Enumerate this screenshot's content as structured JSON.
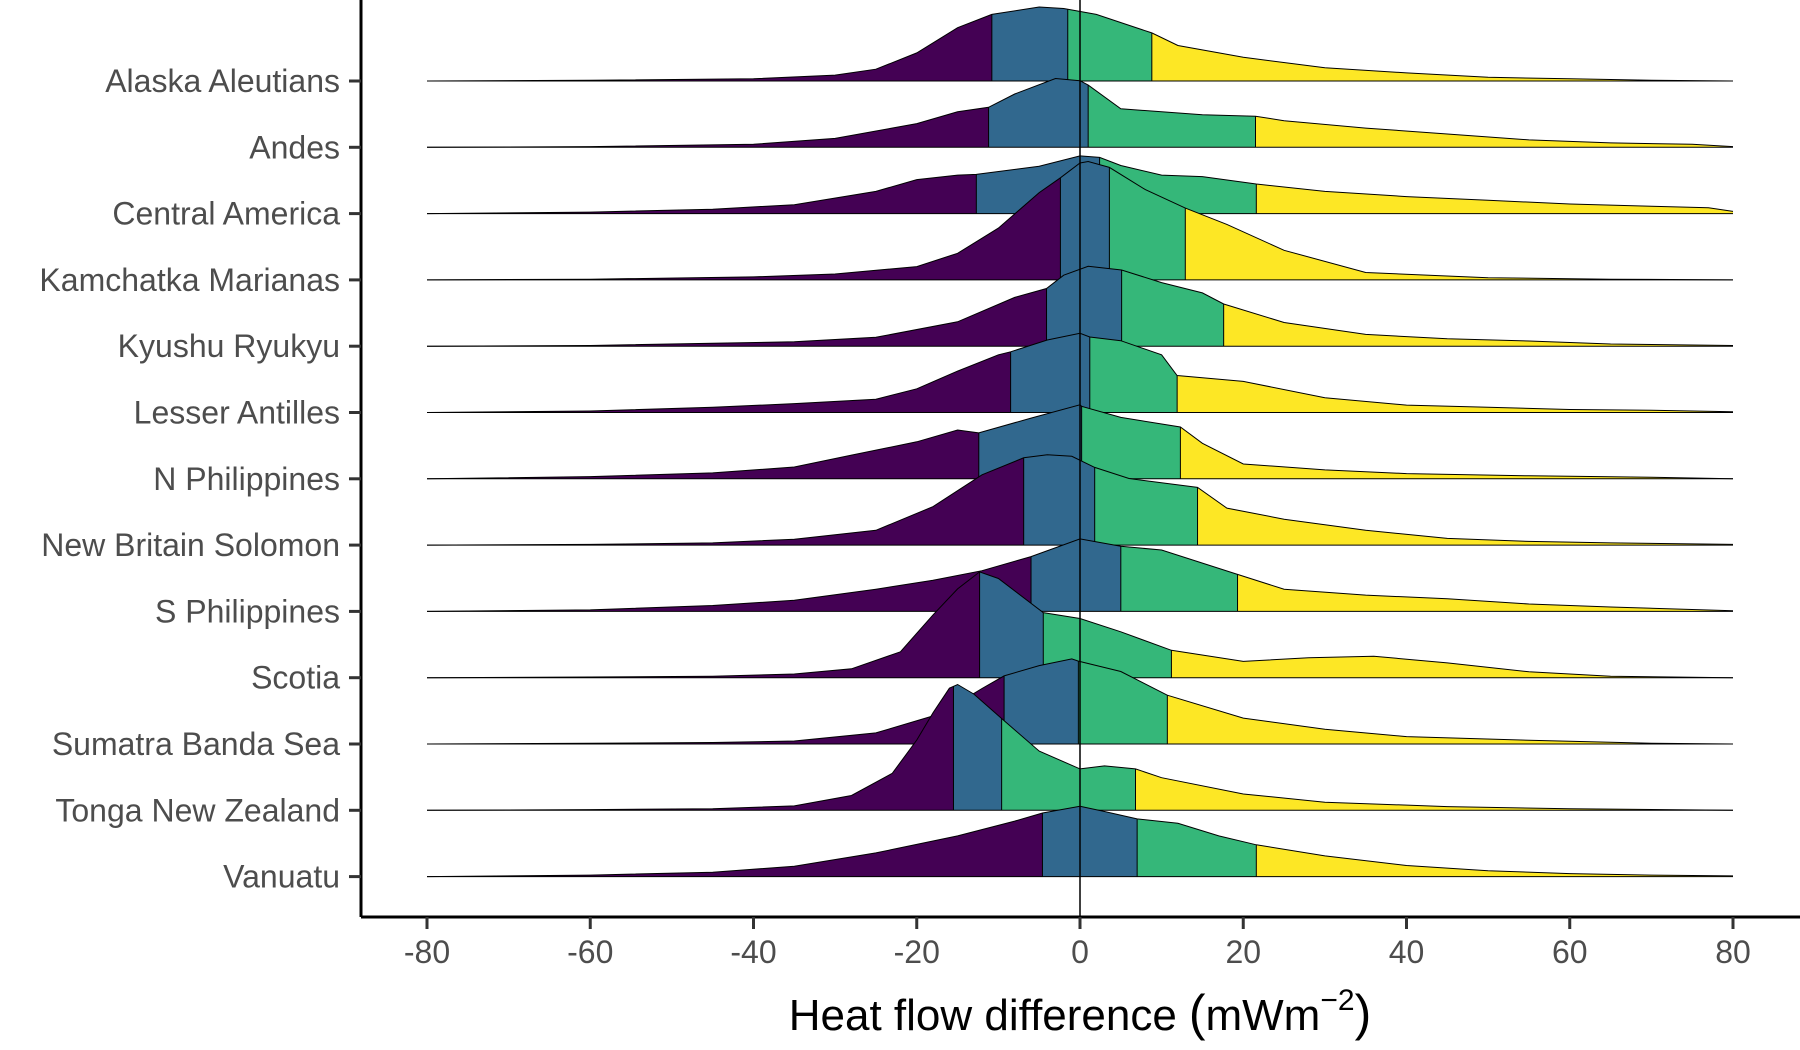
{
  "chart_data": {
    "type": "ridgeline",
    "xlabel": "Heat flow difference",
    "xlabel_unit_left": "(",
    "xlabel_unit_main": "mWm",
    "xlabel_unit_sup": "−2",
    "xlabel_unit_right": ")",
    "xlim": [
      -80,
      80
    ],
    "xticks": [
      -80,
      -60,
      -40,
      -20,
      0,
      20,
      40,
      60,
      80
    ],
    "xtick_labels": [
      "-80",
      "-60",
      "-40",
      "-20",
      "0",
      "20",
      "40",
      "60",
      "80"
    ],
    "vline": 0,
    "quantile_colors": [
      "#440154",
      "#31688E",
      "#35B779",
      "#FDE725"
    ],
    "categories": [
      "Alaska Aleutians",
      "Andes",
      "Central America",
      "Kamchatka Marianas",
      "Kyushu Ryukyu",
      "Lesser Antilles",
      "N Philippines",
      "New Britain Solomon",
      "S Philippines",
      "Scotia",
      "Sumatra Banda Sea",
      "Tonga New Zealand",
      "Vanuatu"
    ],
    "series": [
      {
        "name": "Alaska Aleutians",
        "quartiles": [
          -10.8,
          -1.5,
          8.8
        ],
        "density": [
          [
            -80,
            0
          ],
          [
            -60,
            0.01
          ],
          [
            -40,
            0.03
          ],
          [
            -30,
            0.08
          ],
          [
            -25,
            0.16
          ],
          [
            -20,
            0.38
          ],
          [
            -15,
            0.72
          ],
          [
            -10.8,
            0.9
          ],
          [
            -5,
            1.0
          ],
          [
            -2,
            0.98
          ],
          [
            2,
            0.9
          ],
          [
            8.8,
            0.65
          ],
          [
            12,
            0.48
          ],
          [
            20,
            0.32
          ],
          [
            30,
            0.18
          ],
          [
            40,
            0.11
          ],
          [
            50,
            0.05
          ],
          [
            60,
            0.03
          ],
          [
            70,
            0.01
          ],
          [
            80,
            0
          ]
        ]
      },
      {
        "name": "Andes",
        "quartiles": [
          -11.2,
          1.0,
          21.5
        ],
        "density": [
          [
            -80,
            0
          ],
          [
            -60,
            0.01
          ],
          [
            -40,
            0.04
          ],
          [
            -30,
            0.12
          ],
          [
            -20,
            0.32
          ],
          [
            -15,
            0.48
          ],
          [
            -11.2,
            0.54
          ],
          [
            -8,
            0.72
          ],
          [
            -3,
            0.93
          ],
          [
            0,
            0.9
          ],
          [
            1,
            0.84
          ],
          [
            5,
            0.52
          ],
          [
            15,
            0.44
          ],
          [
            21.5,
            0.42
          ],
          [
            25,
            0.36
          ],
          [
            35,
            0.26
          ],
          [
            45,
            0.18
          ],
          [
            55,
            0.1
          ],
          [
            65,
            0.06
          ],
          [
            75,
            0.04
          ],
          [
            80,
            0.01
          ]
        ]
      },
      {
        "name": "Central America",
        "quartiles": [
          -12.7,
          2.4,
          21.6
        ],
        "density": [
          [
            -80,
            0
          ],
          [
            -60,
            0.02
          ],
          [
            -45,
            0.06
          ],
          [
            -35,
            0.12
          ],
          [
            -25,
            0.3
          ],
          [
            -20,
            0.46
          ],
          [
            -15,
            0.52
          ],
          [
            -12.7,
            0.53
          ],
          [
            -5,
            0.64
          ],
          [
            0,
            0.78
          ],
          [
            2.4,
            0.76
          ],
          [
            5,
            0.65
          ],
          [
            10,
            0.52
          ],
          [
            15,
            0.5
          ],
          [
            21.6,
            0.4
          ],
          [
            30,
            0.3
          ],
          [
            40,
            0.23
          ],
          [
            50,
            0.18
          ],
          [
            60,
            0.13
          ],
          [
            70,
            0.1
          ],
          [
            77,
            0.08
          ],
          [
            80,
            0.03
          ]
        ]
      },
      {
        "name": "Kamchatka Marianas",
        "quartiles": [
          -2.4,
          3.6,
          12.9
        ],
        "density": [
          [
            -80,
            0
          ],
          [
            -60,
            0.01
          ],
          [
            -40,
            0.04
          ],
          [
            -30,
            0.08
          ],
          [
            -20,
            0.18
          ],
          [
            -15,
            0.36
          ],
          [
            -10,
            0.7
          ],
          [
            -5,
            1.18
          ],
          [
            -2.4,
            1.38
          ],
          [
            0,
            1.58
          ],
          [
            1,
            1.6
          ],
          [
            3.6,
            1.52
          ],
          [
            8,
            1.22
          ],
          [
            12.9,
            0.97
          ],
          [
            18,
            0.75
          ],
          [
            25,
            0.4
          ],
          [
            35,
            0.1
          ],
          [
            50,
            0.03
          ],
          [
            65,
            0.01
          ],
          [
            80,
            0
          ]
        ]
      },
      {
        "name": "Kyushu Ryukyu",
        "quartiles": [
          -4.1,
          5.1,
          17.6
        ],
        "density": [
          [
            -80,
            0
          ],
          [
            -60,
            0.01
          ],
          [
            -45,
            0.04
          ],
          [
            -35,
            0.06
          ],
          [
            -25,
            0.12
          ],
          [
            -15,
            0.33
          ],
          [
            -8,
            0.66
          ],
          [
            -4.1,
            0.78
          ],
          [
            -2,
            0.96
          ],
          [
            1,
            1.08
          ],
          [
            5.1,
            1.03
          ],
          [
            10,
            0.86
          ],
          [
            15,
            0.72
          ],
          [
            17.6,
            0.57
          ],
          [
            25,
            0.32
          ],
          [
            35,
            0.16
          ],
          [
            45,
            0.1
          ],
          [
            55,
            0.07
          ],
          [
            65,
            0.03
          ],
          [
            80,
            0.01
          ]
        ]
      },
      {
        "name": "Lesser Antilles",
        "quartiles": [
          -8.5,
          1.2,
          11.9
        ],
        "density": [
          [
            -80,
            0
          ],
          [
            -60,
            0.02
          ],
          [
            -45,
            0.07
          ],
          [
            -35,
            0.12
          ],
          [
            -25,
            0.18
          ],
          [
            -20,
            0.32
          ],
          [
            -15,
            0.56
          ],
          [
            -10,
            0.78
          ],
          [
            -8.5,
            0.82
          ],
          [
            -4,
            0.98
          ],
          [
            0,
            1.07
          ],
          [
            1.2,
            1.02
          ],
          [
            5,
            0.97
          ],
          [
            10,
            0.78
          ],
          [
            11.9,
            0.5
          ],
          [
            20,
            0.42
          ],
          [
            30,
            0.2
          ],
          [
            40,
            0.1
          ],
          [
            50,
            0.07
          ],
          [
            60,
            0.04
          ],
          [
            70,
            0.03
          ],
          [
            80,
            0.01
          ]
        ]
      },
      {
        "name": "N Philippines",
        "quartiles": [
          -12.4,
          0.2,
          12.3
        ],
        "density": [
          [
            -80,
            0
          ],
          [
            -60,
            0.03
          ],
          [
            -45,
            0.08
          ],
          [
            -35,
            0.16
          ],
          [
            -28,
            0.32
          ],
          [
            -20,
            0.5
          ],
          [
            -15,
            0.66
          ],
          [
            -12.4,
            0.62
          ],
          [
            -6,
            0.82
          ],
          [
            0,
            1.0
          ],
          [
            0.2,
            0.98
          ],
          [
            5,
            0.83
          ],
          [
            12.3,
            0.7
          ],
          [
            15,
            0.48
          ],
          [
            20,
            0.2
          ],
          [
            30,
            0.12
          ],
          [
            40,
            0.07
          ],
          [
            55,
            0.04
          ],
          [
            70,
            0.02
          ],
          [
            80,
            0
          ]
        ]
      },
      {
        "name": "New Britain Solomon",
        "quartiles": [
          -6.9,
          1.8,
          14.4
        ],
        "density": [
          [
            -80,
            0
          ],
          [
            -60,
            0.01
          ],
          [
            -45,
            0.03
          ],
          [
            -35,
            0.08
          ],
          [
            -25,
            0.2
          ],
          [
            -18,
            0.52
          ],
          [
            -12,
            0.95
          ],
          [
            -6.9,
            1.18
          ],
          [
            -4,
            1.22
          ],
          [
            -1,
            1.2
          ],
          [
            1.8,
            1.05
          ],
          [
            6,
            0.9
          ],
          [
            14.4,
            0.78
          ],
          [
            18,
            0.5
          ],
          [
            25,
            0.35
          ],
          [
            35,
            0.2
          ],
          [
            45,
            0.09
          ],
          [
            55,
            0.05
          ],
          [
            65,
            0.03
          ],
          [
            80,
            0.01
          ]
        ]
      },
      {
        "name": "S Philippines",
        "quartiles": [
          -6.0,
          5.0,
          19.3
        ],
        "density": [
          [
            -80,
            0
          ],
          [
            -60,
            0.02
          ],
          [
            -45,
            0.08
          ],
          [
            -35,
            0.15
          ],
          [
            -25,
            0.3
          ],
          [
            -18,
            0.42
          ],
          [
            -12,
            0.55
          ],
          [
            -6,
            0.74
          ],
          [
            0,
            0.98
          ],
          [
            5,
            0.88
          ],
          [
            10,
            0.83
          ],
          [
            19.3,
            0.5
          ],
          [
            25,
            0.3
          ],
          [
            35,
            0.22
          ],
          [
            45,
            0.17
          ],
          [
            55,
            0.1
          ],
          [
            65,
            0.06
          ],
          [
            80,
            0.01
          ]
        ]
      },
      {
        "name": "Scotia",
        "quartiles": [
          -12.3,
          -4.5,
          11.2
        ],
        "density": [
          [
            -80,
            0
          ],
          [
            -60,
            0.01
          ],
          [
            -45,
            0.02
          ],
          [
            -35,
            0.05
          ],
          [
            -28,
            0.12
          ],
          [
            -22,
            0.35
          ],
          [
            -18,
            0.85
          ],
          [
            -15,
            1.2
          ],
          [
            -12.3,
            1.43
          ],
          [
            -10,
            1.34
          ],
          [
            -4.5,
            0.88
          ],
          [
            0,
            0.8
          ],
          [
            5,
            0.62
          ],
          [
            11.2,
            0.37
          ],
          [
            20,
            0.22
          ],
          [
            28,
            0.27
          ],
          [
            36,
            0.29
          ],
          [
            45,
            0.2
          ],
          [
            55,
            0.08
          ],
          [
            65,
            0.02
          ],
          [
            80,
            0
          ]
        ]
      },
      {
        "name": "Sumatra Banda Sea",
        "quartiles": [
          -9.3,
          -0.2,
          10.7
        ],
        "density": [
          [
            -80,
            0
          ],
          [
            -60,
            0.01
          ],
          [
            -45,
            0.02
          ],
          [
            -35,
            0.04
          ],
          [
            -25,
            0.15
          ],
          [
            -18,
            0.38
          ],
          [
            -15,
            0.55
          ],
          [
            -12,
            0.75
          ],
          [
            -9.3,
            0.92
          ],
          [
            -5,
            1.06
          ],
          [
            -1,
            1.15
          ],
          [
            -0.2,
            1.12
          ],
          [
            5,
            0.98
          ],
          [
            10.7,
            0.66
          ],
          [
            20,
            0.35
          ],
          [
            30,
            0.2
          ],
          [
            40,
            0.1
          ],
          [
            55,
            0.05
          ],
          [
            70,
            0.01
          ],
          [
            80,
            0
          ]
        ]
      },
      {
        "name": "Tonga New Zealand",
        "quartiles": [
          -15.5,
          -9.6,
          6.8
        ],
        "density": [
          [
            -80,
            0
          ],
          [
            -60,
            0.01
          ],
          [
            -45,
            0.02
          ],
          [
            -35,
            0.06
          ],
          [
            -28,
            0.2
          ],
          [
            -23,
            0.5
          ],
          [
            -20,
            0.95
          ],
          [
            -18,
            1.32
          ],
          [
            -16,
            1.65
          ],
          [
            -15,
            1.7
          ],
          [
            -13,
            1.57
          ],
          [
            -9.6,
            1.24
          ],
          [
            -5,
            0.8
          ],
          [
            0,
            0.56
          ],
          [
            3,
            0.6
          ],
          [
            6.8,
            0.56
          ],
          [
            10,
            0.44
          ],
          [
            20,
            0.22
          ],
          [
            30,
            0.11
          ],
          [
            45,
            0.05
          ],
          [
            60,
            0.02
          ],
          [
            80,
            0
          ]
        ]
      },
      {
        "name": "Vanuatu",
        "quartiles": [
          -4.6,
          7.0,
          21.6
        ],
        "density": [
          [
            -80,
            0
          ],
          [
            -60,
            0.02
          ],
          [
            -45,
            0.06
          ],
          [
            -35,
            0.14
          ],
          [
            -25,
            0.32
          ],
          [
            -15,
            0.55
          ],
          [
            -8,
            0.75
          ],
          [
            -4.6,
            0.86
          ],
          [
            0,
            0.95
          ],
          [
            3,
            0.88
          ],
          [
            7,
            0.78
          ],
          [
            12,
            0.72
          ],
          [
            17,
            0.55
          ],
          [
            21.6,
            0.43
          ],
          [
            30,
            0.28
          ],
          [
            40,
            0.15
          ],
          [
            50,
            0.08
          ],
          [
            60,
            0.04
          ],
          [
            70,
            0.02
          ],
          [
            80,
            0.01
          ]
        ]
      }
    ]
  }
}
